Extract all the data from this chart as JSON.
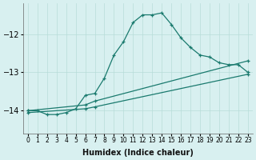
{
  "xlabel": "Humidex (Indice chaleur)",
  "background_color": "#d8f0f0",
  "grid_color": "#b8dcd8",
  "line_color": "#1a7a6e",
  "xlim": [
    -0.5,
    23.5
  ],
  "ylim": [
    -14.6,
    -11.2
  ],
  "yticks": [
    -14,
    -13,
    -12
  ],
  "xticks": [
    0,
    1,
    2,
    3,
    4,
    5,
    6,
    7,
    8,
    9,
    10,
    11,
    12,
    13,
    14,
    15,
    16,
    17,
    18,
    19,
    20,
    21,
    22,
    23
  ],
  "series": [
    {
      "x": [
        0,
        1,
        2,
        3,
        4,
        5,
        6,
        7,
        8,
        9,
        10,
        11,
        12,
        13,
        14,
        15,
        16,
        17,
        18,
        19,
        20,
        21,
        22,
        23
      ],
      "y": [
        -14.0,
        -14.0,
        -14.1,
        -14.1,
        -14.05,
        -13.95,
        -13.6,
        -13.55,
        -13.15,
        -12.55,
        -12.2,
        -11.7,
        -11.5,
        -11.5,
        -11.45,
        -11.75,
        -12.1,
        -12.35,
        -12.55,
        -12.6,
        -12.75,
        -12.8,
        -12.8,
        -13.0
      ]
    },
    {
      "x": [
        0,
        6,
        7,
        23
      ],
      "y": [
        -14.0,
        -13.85,
        -13.75,
        -12.7
      ]
    },
    {
      "x": [
        0,
        6,
        7,
        23
      ],
      "y": [
        -14.05,
        -13.95,
        -13.9,
        -13.05
      ]
    }
  ]
}
